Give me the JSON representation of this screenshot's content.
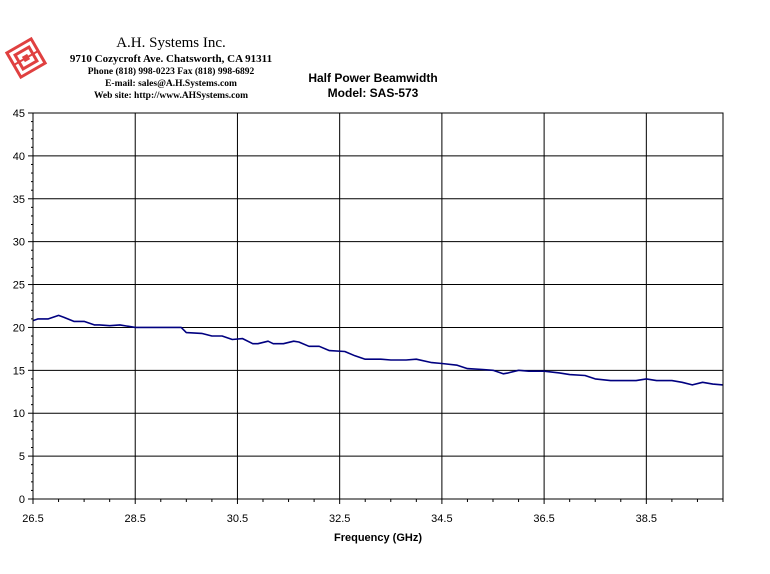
{
  "header": {
    "company_name": "A.H. Systems Inc.",
    "address": "9710 Cozycroft Ave. Chatsworth, CA 91311",
    "phone_fax": "Phone (818) 998-0223 Fax (818) 998-6892",
    "email": "E-mail:  sales@A.H.Systems.com",
    "website": "Web site:  http://www.AHSystems.com",
    "logo_color": "#e04040"
  },
  "chart_data": {
    "type": "line",
    "title": "Half Power Beamwidth",
    "subtitle": "Model: SAS-573",
    "xlabel": "Frequency (GHz)",
    "ylabel": "",
    "xlim": [
      26.5,
      40
    ],
    "ylim": [
      0,
      45
    ],
    "grid": true,
    "x_ticks": [
      "26.5",
      "28.5",
      "30.5",
      "32.5",
      "34.5",
      "36.5",
      "38.5"
    ],
    "y_ticks": [
      "0",
      "5",
      "10",
      "15",
      "20",
      "25",
      "30",
      "35",
      "40",
      "45"
    ],
    "line_color": "#000080",
    "series": [
      {
        "x": [
          26.5,
          26.6,
          26.8,
          27.0,
          27.1,
          27.3,
          27.5,
          27.7,
          27.8,
          28.0,
          28.2,
          28.4,
          28.5,
          28.8,
          29.0,
          29.4,
          29.5,
          29.8,
          30.0,
          30.2,
          30.4,
          30.6,
          30.8,
          30.9,
          31.1,
          31.2,
          31.4,
          31.6,
          31.7,
          31.9,
          32.1,
          32.3,
          32.6,
          32.8,
          33.0,
          33.3,
          33.5,
          33.8,
          34.0,
          34.3,
          34.5,
          34.8,
          35.0,
          35.3,
          35.5,
          35.7,
          35.8,
          36.0,
          36.2,
          36.4,
          36.5,
          36.8,
          37.0,
          37.3,
          37.5,
          37.8,
          38.0,
          38.3,
          38.5,
          38.7,
          39.0,
          39.2,
          39.4,
          39.6,
          39.8,
          40.0
        ],
        "values": [
          20.8,
          21.0,
          21.0,
          21.4,
          21.2,
          20.7,
          20.7,
          20.3,
          20.3,
          20.2,
          20.3,
          20.1,
          20.0,
          20.0,
          20.0,
          20.0,
          19.4,
          19.3,
          19.0,
          19.0,
          18.6,
          18.7,
          18.1,
          18.1,
          18.4,
          18.1,
          18.1,
          18.4,
          18.3,
          17.8,
          17.8,
          17.3,
          17.2,
          16.7,
          16.3,
          16.3,
          16.2,
          16.2,
          16.3,
          15.9,
          15.8,
          15.6,
          15.2,
          15.1,
          15.0,
          14.6,
          14.7,
          15.0,
          14.9,
          14.9,
          14.9,
          14.7,
          14.5,
          14.4,
          14.0,
          13.8,
          13.8,
          13.8,
          14.0,
          13.8,
          13.8,
          13.6,
          13.3,
          13.6,
          13.4,
          13.3
        ]
      }
    ]
  }
}
